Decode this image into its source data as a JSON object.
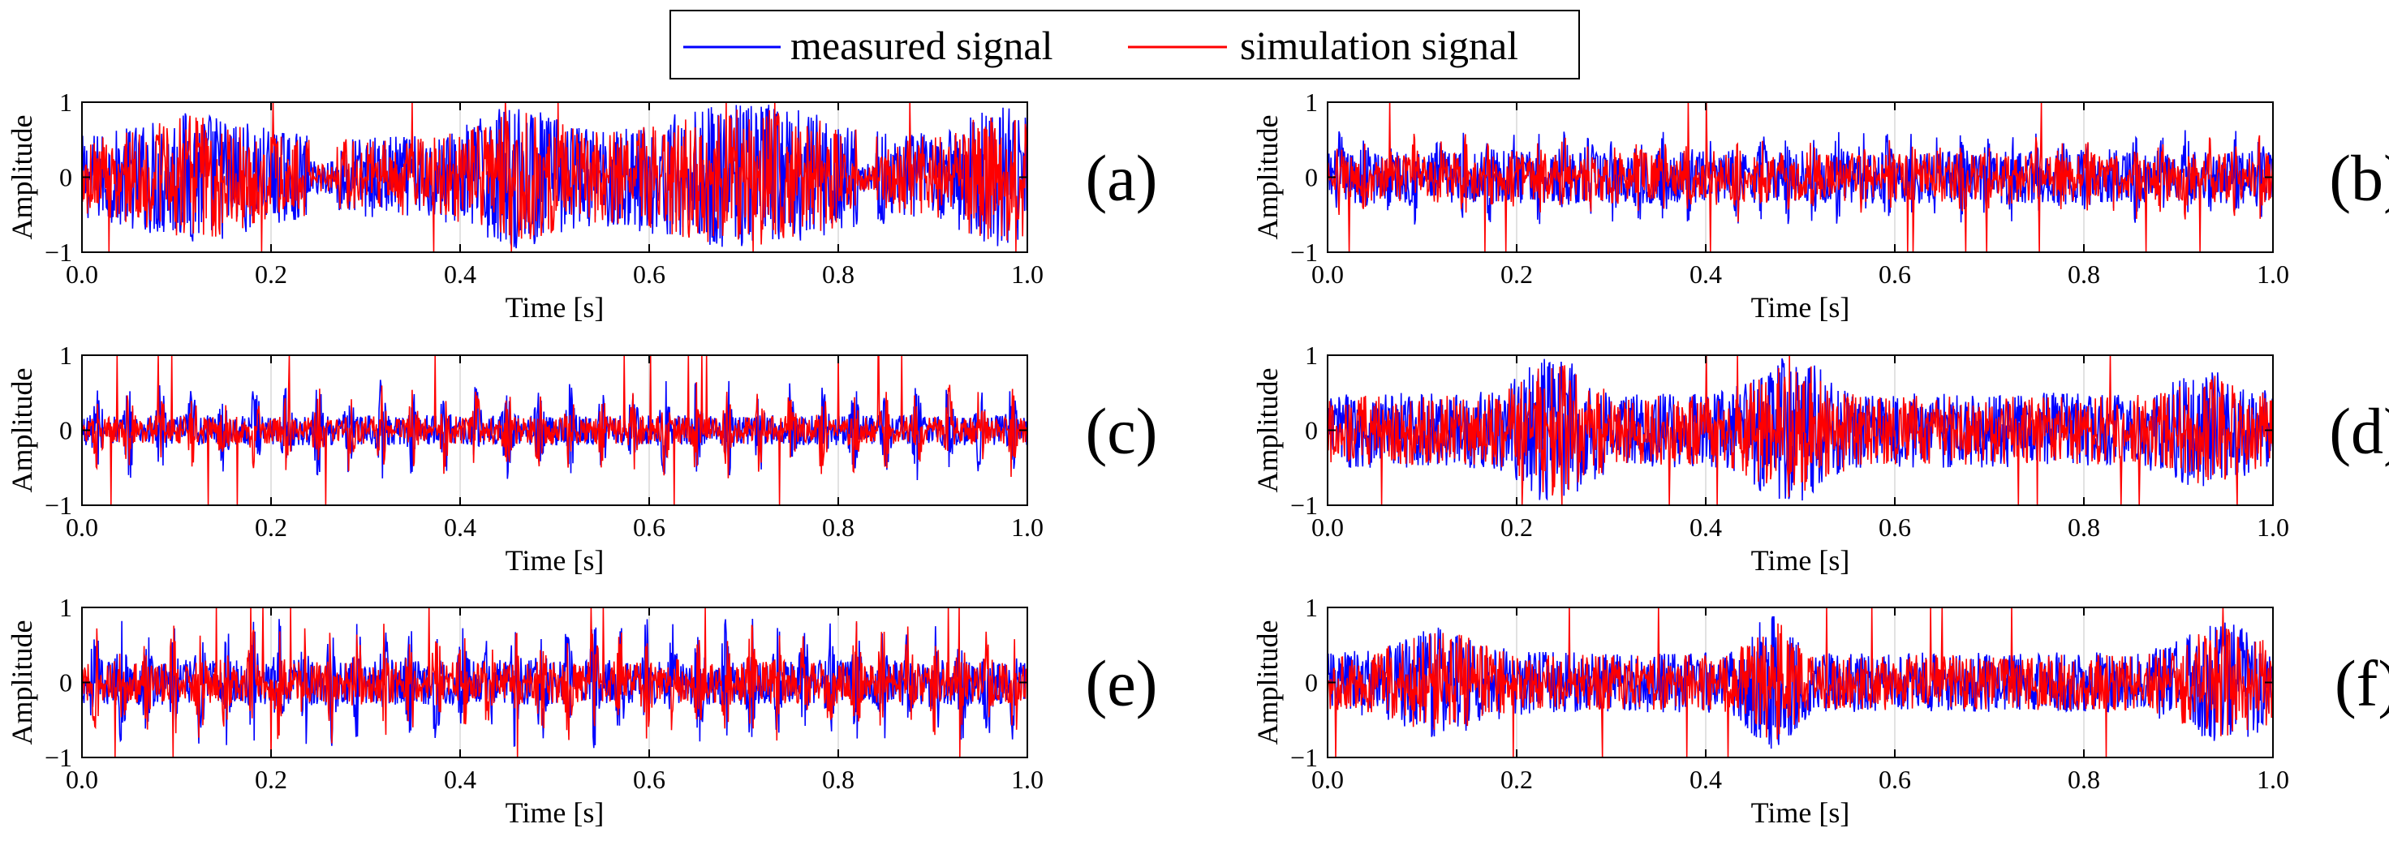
{
  "figure": {
    "legend": {
      "items": [
        {
          "label": "measured signal",
          "color": "#0000ff"
        },
        {
          "label": "simulation signal",
          "color": "#ff0000"
        }
      ]
    }
  },
  "chart_data": [
    {
      "id": "a",
      "type": "line",
      "panel_label": "(a)",
      "xlabel": "Time [s]",
      "ylabel": "Amplitude",
      "xlim": [
        0,
        1
      ],
      "ylim": [
        -1,
        1
      ],
      "grid": true,
      "x_ticks": [
        "0.0",
        "0.2",
        "0.4",
        "0.6",
        "0.8",
        "1.0"
      ],
      "y_ticks": [
        "-1",
        "0",
        "1"
      ],
      "series": [
        {
          "name": "measured signal",
          "color": "#0000ff"
        },
        {
          "name": "simulation signal",
          "color": "#ff0000"
        }
      ]
    },
    {
      "id": "b",
      "type": "line",
      "panel_label": "(b)",
      "xlabel": "Time [s]",
      "ylabel": "Amplitude",
      "xlim": [
        0,
        1
      ],
      "ylim": [
        -1,
        1
      ],
      "grid": true,
      "x_ticks": [
        "0.0",
        "0.2",
        "0.4",
        "0.6",
        "0.8",
        "1.0"
      ],
      "y_ticks": [
        "-1",
        "0",
        "1"
      ],
      "series": [
        {
          "name": "measured signal",
          "color": "#0000ff"
        },
        {
          "name": "simulation signal",
          "color": "#ff0000"
        }
      ]
    },
    {
      "id": "c",
      "type": "line",
      "panel_label": "(c)",
      "xlabel": "Time [s]",
      "ylabel": "Amplitude",
      "xlim": [
        0,
        1
      ],
      "ylim": [
        -1,
        1
      ],
      "grid": true,
      "x_ticks": [
        "0.0",
        "0.2",
        "0.4",
        "0.6",
        "0.8",
        "1.0"
      ],
      "y_ticks": [
        "-1",
        "0",
        "1"
      ],
      "series": [
        {
          "name": "measured signal",
          "color": "#0000ff"
        },
        {
          "name": "simulation signal",
          "color": "#ff0000"
        }
      ]
    },
    {
      "id": "d",
      "type": "line",
      "panel_label": "(d)",
      "xlabel": "Time [s]",
      "ylabel": "Amplitude",
      "xlim": [
        0,
        1
      ],
      "ylim": [
        -1,
        1
      ],
      "grid": true,
      "x_ticks": [
        "0.0",
        "0.2",
        "0.4",
        "0.6",
        "0.8",
        "1.0"
      ],
      "y_ticks": [
        "-1",
        "0",
        "1"
      ],
      "series": [
        {
          "name": "measured signal",
          "color": "#0000ff"
        },
        {
          "name": "simulation signal",
          "color": "#ff0000"
        }
      ]
    },
    {
      "id": "e",
      "type": "line",
      "panel_label": "(e)",
      "xlabel": "Time [s]",
      "ylabel": "Amplitude",
      "xlim": [
        0,
        1
      ],
      "ylim": [
        -1,
        1
      ],
      "grid": true,
      "x_ticks": [
        "0.0",
        "0.2",
        "0.4",
        "0.6",
        "0.8",
        "1.0"
      ],
      "y_ticks": [
        "-1",
        "0",
        "1"
      ],
      "series": [
        {
          "name": "measured signal",
          "color": "#0000ff"
        },
        {
          "name": "simulation signal",
          "color": "#ff0000"
        }
      ]
    },
    {
      "id": "f",
      "type": "line",
      "panel_label": "(f)",
      "xlabel": "Time [s]",
      "ylabel": "Amplitude",
      "xlim": [
        0,
        1
      ],
      "ylim": [
        -1,
        1
      ],
      "grid": true,
      "x_ticks": [
        "0.0",
        "0.2",
        "0.4",
        "0.6",
        "0.8",
        "1.0"
      ],
      "y_ticks": [
        "-1",
        "0",
        "1"
      ],
      "series": [
        {
          "name": "measured signal",
          "color": "#0000ff"
        },
        {
          "name": "simulation signal",
          "color": "#ff0000"
        }
      ]
    }
  ]
}
